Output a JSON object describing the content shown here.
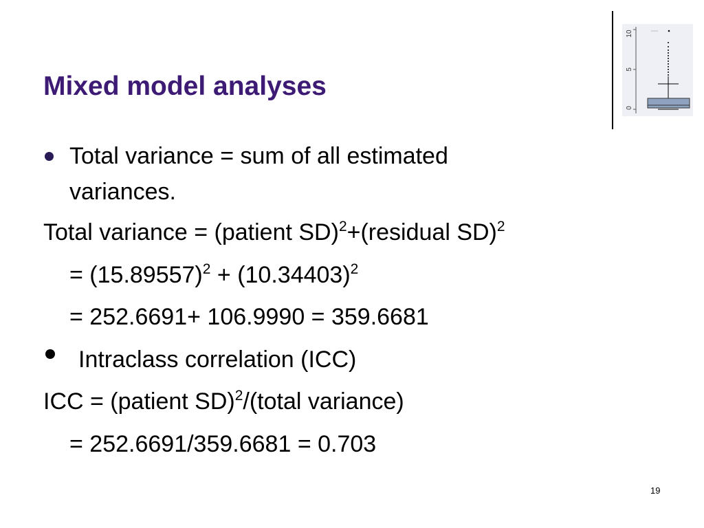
{
  "title": "Mixed model analyses",
  "thumbnail": {
    "icon": "boxplot-thumbnail-icon",
    "tick_labels": [
      "10",
      "5",
      "0"
    ],
    "box_color": "#8fa3c0",
    "panel_color": "#eef0f5"
  },
  "bullets": [
    {
      "line1": "Total variance = sum of all estimated",
      "line2": "variances."
    },
    {
      "line1": "Intraclass correlation (ICC)"
    }
  ],
  "formulas": {
    "total_variance": {
      "part1": "Total variance = (patient SD)",
      "sup1": "2",
      "part2": "+(residual SD)",
      "sup2": "2"
    },
    "step1": {
      "part1": "= (15.89557)",
      "sup1": "2",
      "part2": " + (10.34403)",
      "sup2": "2"
    },
    "step2": "= 252.6691+ 106.9990 = 359.6681",
    "icc": {
      "part1": "ICC = (patient SD)",
      "sup1": "2",
      "part2": "/(total variance)"
    },
    "icc_result": "= 252.6691/359.6681 = 0.703"
  },
  "page_number": "19",
  "colors": {
    "title": "#3d1a73",
    "bullet": "#2a1a55"
  }
}
